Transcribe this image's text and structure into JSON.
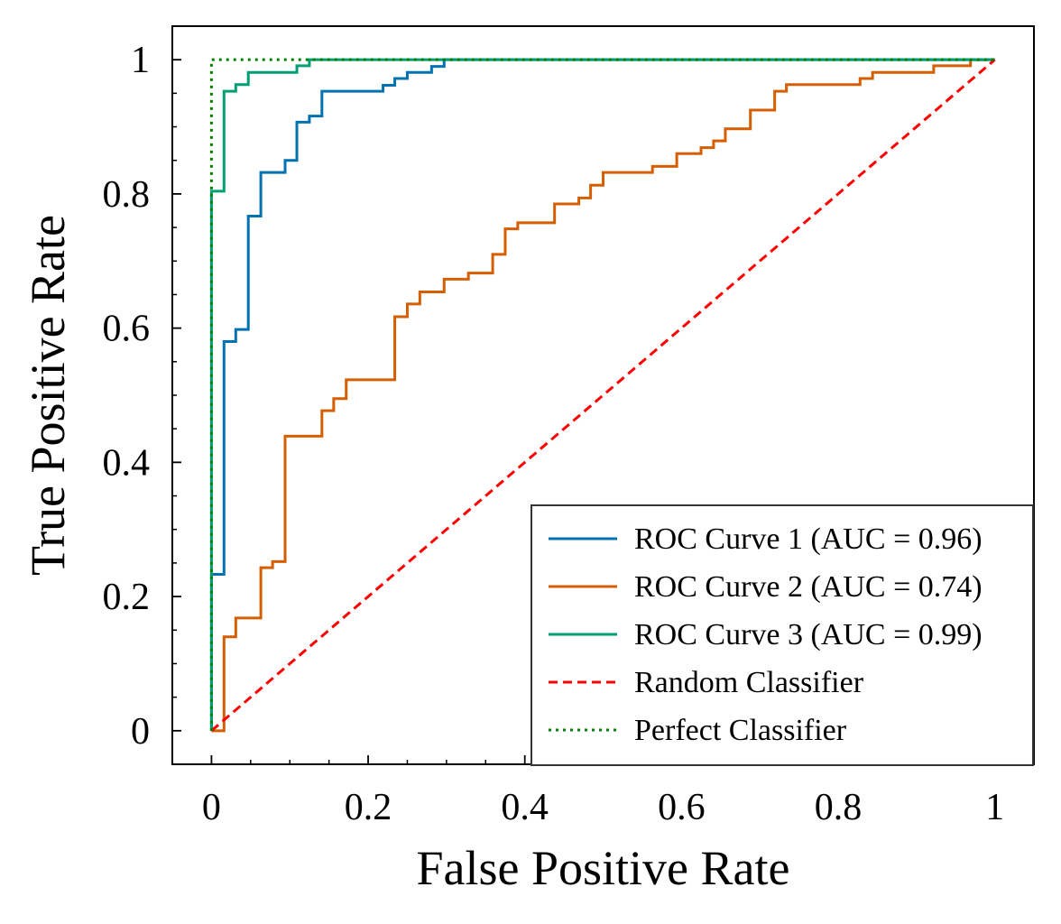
{
  "chart_data": {
    "type": "line",
    "title": "",
    "xlabel": "False Positive Rate",
    "ylabel": "True Positive Rate",
    "xlim": [
      -0.05,
      1.05
    ],
    "ylim": [
      -0.05,
      1.05
    ],
    "x_ticks": [
      0,
      0.2,
      0.4,
      0.6,
      0.8,
      1
    ],
    "x_tick_labels": [
      "0",
      "0.2",
      "0.4",
      "0.6",
      "0.8",
      "1"
    ],
    "y_ticks": [
      0,
      0.2,
      0.4,
      0.6,
      0.8,
      1
    ],
    "y_tick_labels": [
      "0",
      "0.2",
      "0.4",
      "0.6",
      "0.8",
      "1"
    ],
    "grid": false,
    "legend_position": "lower-right",
    "series": [
      {
        "name": "ROC Curve 1 (AUC = 0.96)",
        "color": "#0072B2",
        "style": "solid",
        "step": true,
        "points": [
          [
            0.0,
            0.0
          ],
          [
            0.0,
            0.233
          ],
          [
            0.016,
            0.233
          ],
          [
            0.016,
            0.58
          ],
          [
            0.031,
            0.58
          ],
          [
            0.031,
            0.598
          ],
          [
            0.047,
            0.598
          ],
          [
            0.047,
            0.767
          ],
          [
            0.063,
            0.767
          ],
          [
            0.063,
            0.832
          ],
          [
            0.094,
            0.832
          ],
          [
            0.094,
            0.85
          ],
          [
            0.109,
            0.85
          ],
          [
            0.109,
            0.907
          ],
          [
            0.125,
            0.907
          ],
          [
            0.125,
            0.916
          ],
          [
            0.141,
            0.916
          ],
          [
            0.141,
            0.953
          ],
          [
            0.219,
            0.953
          ],
          [
            0.219,
            0.962
          ],
          [
            0.234,
            0.962
          ],
          [
            0.234,
            0.972
          ],
          [
            0.25,
            0.972
          ],
          [
            0.25,
            0.981
          ],
          [
            0.281,
            0.981
          ],
          [
            0.281,
            0.99
          ],
          [
            0.297,
            0.99
          ],
          [
            0.297,
            1.0
          ],
          [
            1.0,
            1.0
          ]
        ]
      },
      {
        "name": "ROC Curve 2 (AUC = 0.74)",
        "color": "#D55E00",
        "style": "solid",
        "step": true,
        "points": [
          [
            0.0,
            0.0
          ],
          [
            0.016,
            0.0
          ],
          [
            0.016,
            0.14
          ],
          [
            0.031,
            0.14
          ],
          [
            0.031,
            0.168
          ],
          [
            0.063,
            0.168
          ],
          [
            0.063,
            0.243
          ],
          [
            0.078,
            0.243
          ],
          [
            0.078,
            0.252
          ],
          [
            0.094,
            0.252
          ],
          [
            0.094,
            0.439
          ],
          [
            0.141,
            0.439
          ],
          [
            0.141,
            0.477
          ],
          [
            0.156,
            0.477
          ],
          [
            0.156,
            0.495
          ],
          [
            0.172,
            0.495
          ],
          [
            0.172,
            0.523
          ],
          [
            0.234,
            0.523
          ],
          [
            0.234,
            0.617
          ],
          [
            0.25,
            0.617
          ],
          [
            0.25,
            0.636
          ],
          [
            0.266,
            0.636
          ],
          [
            0.266,
            0.654
          ],
          [
            0.297,
            0.654
          ],
          [
            0.297,
            0.673
          ],
          [
            0.328,
            0.673
          ],
          [
            0.328,
            0.682
          ],
          [
            0.359,
            0.682
          ],
          [
            0.359,
            0.71
          ],
          [
            0.375,
            0.71
          ],
          [
            0.375,
            0.748
          ],
          [
            0.391,
            0.748
          ],
          [
            0.391,
            0.757
          ],
          [
            0.438,
            0.757
          ],
          [
            0.438,
            0.785
          ],
          [
            0.469,
            0.785
          ],
          [
            0.469,
            0.794
          ],
          [
            0.484,
            0.794
          ],
          [
            0.484,
            0.813
          ],
          [
            0.5,
            0.813
          ],
          [
            0.5,
            0.832
          ],
          [
            0.563,
            0.832
          ],
          [
            0.563,
            0.841
          ],
          [
            0.594,
            0.841
          ],
          [
            0.594,
            0.86
          ],
          [
            0.625,
            0.86
          ],
          [
            0.625,
            0.869
          ],
          [
            0.641,
            0.869
          ],
          [
            0.641,
            0.879
          ],
          [
            0.656,
            0.879
          ],
          [
            0.656,
            0.897
          ],
          [
            0.688,
            0.897
          ],
          [
            0.688,
            0.925
          ],
          [
            0.719,
            0.925
          ],
          [
            0.719,
            0.953
          ],
          [
            0.734,
            0.953
          ],
          [
            0.734,
            0.963
          ],
          [
            0.828,
            0.963
          ],
          [
            0.828,
            0.972
          ],
          [
            0.844,
            0.972
          ],
          [
            0.844,
            0.981
          ],
          [
            0.922,
            0.981
          ],
          [
            0.922,
            0.991
          ],
          [
            0.969,
            0.991
          ],
          [
            0.969,
            1.0
          ],
          [
            1.0,
            1.0
          ]
        ]
      },
      {
        "name": "ROC Curve 3 (AUC = 0.99)",
        "color": "#009E73",
        "style": "solid",
        "step": true,
        "points": [
          [
            0.0,
            0.0
          ],
          [
            0.0,
            0.804
          ],
          [
            0.016,
            0.804
          ],
          [
            0.016,
            0.953
          ],
          [
            0.031,
            0.953
          ],
          [
            0.031,
            0.963
          ],
          [
            0.047,
            0.963
          ],
          [
            0.047,
            0.981
          ],
          [
            0.109,
            0.981
          ],
          [
            0.109,
            0.991
          ],
          [
            0.125,
            0.991
          ],
          [
            0.125,
            1.0
          ],
          [
            1.0,
            1.0
          ]
        ]
      },
      {
        "name": "Random Classifier",
        "color": "#FF0000",
        "style": "dashed",
        "step": false,
        "points": [
          [
            0,
            0
          ],
          [
            1,
            1
          ]
        ]
      },
      {
        "name": "Perfect Classifier",
        "color": "#008000",
        "style": "dotted",
        "step": false,
        "points": [
          [
            0,
            0
          ],
          [
            0,
            1
          ],
          [
            1,
            1
          ]
        ]
      }
    ]
  }
}
